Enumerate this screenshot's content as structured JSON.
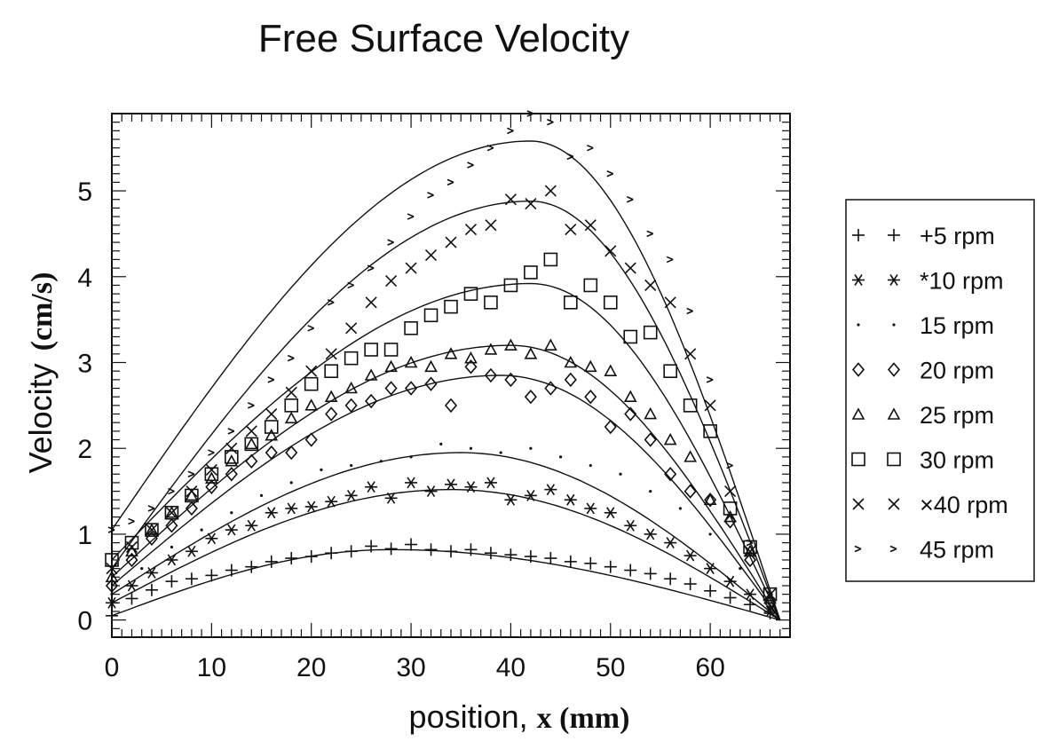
{
  "chart_data": {
    "type": "scatter",
    "title": "Free Surface Velocity",
    "xlabel_main": "position,",
    "xlabel_var": "x (mm)",
    "ylabel_main": "Velocity",
    "ylabel_unit": "(cm/s)",
    "xlim": [
      0,
      68
    ],
    "ylim": [
      -0.2,
      5.9
    ],
    "x_ticks": [
      0,
      10,
      20,
      30,
      40,
      50,
      60
    ],
    "x_tick_labels": [
      "0",
      "10",
      "20",
      "30",
      "40",
      "50",
      "60"
    ],
    "y_ticks": [
      0,
      1,
      2,
      3,
      4,
      5
    ],
    "y_tick_labels": [
      "0",
      "1",
      "2",
      "3",
      "4",
      "5"
    ],
    "grid": false,
    "legend_position": "right",
    "series": [
      {
        "name": "5 rpm",
        "marker": "plus",
        "legend": "+5 rpm",
        "fit_peak": 0.82,
        "fit_peak_x": 28,
        "x": [
          0,
          2,
          4,
          6,
          8,
          10,
          12,
          14,
          16,
          18,
          20,
          22,
          24,
          26,
          28,
          30,
          32,
          34,
          36,
          38,
          40,
          42,
          44,
          46,
          48,
          50,
          52,
          54,
          56,
          58,
          60,
          62,
          64,
          66
        ],
        "y": [
          0.05,
          0.25,
          0.35,
          0.45,
          0.48,
          0.52,
          0.58,
          0.62,
          0.68,
          0.72,
          0.74,
          0.78,
          0.8,
          0.86,
          0.83,
          0.88,
          0.82,
          0.8,
          0.82,
          0.78,
          0.76,
          0.74,
          0.72,
          0.68,
          0.66,
          0.62,
          0.58,
          0.54,
          0.48,
          0.42,
          0.34,
          0.26,
          0.18,
          0.08
        ]
      },
      {
        "name": "10 rpm",
        "marker": "star",
        "legend": "*10 rpm",
        "fit_peak": 1.52,
        "fit_peak_x": 34,
        "x": [
          0,
          2,
          4,
          6,
          8,
          10,
          12,
          14,
          16,
          18,
          20,
          22,
          24,
          26,
          28,
          30,
          32,
          34,
          36,
          38,
          40,
          42,
          44,
          46,
          48,
          50,
          52,
          54,
          56,
          58,
          60,
          62,
          64,
          66
        ],
        "y": [
          0.2,
          0.4,
          0.55,
          0.7,
          0.8,
          0.95,
          1.05,
          1.1,
          1.25,
          1.3,
          1.32,
          1.38,
          1.45,
          1.55,
          1.42,
          1.6,
          1.5,
          1.58,
          1.55,
          1.6,
          1.4,
          1.45,
          1.52,
          1.4,
          1.3,
          1.25,
          1.1,
          1.0,
          0.9,
          0.75,
          0.6,
          0.45,
          0.3,
          0.1
        ]
      },
      {
        "name": "15 rpm",
        "marker": "dot",
        "legend": "15 rpm",
        "fit_peak": 1.95,
        "fit_peak_x": 35,
        "x": [
          0,
          3,
          6,
          9,
          12,
          15,
          18,
          21,
          24,
          27,
          30,
          33,
          36,
          39,
          42,
          45,
          48,
          51,
          54,
          57,
          60,
          63,
          66
        ],
        "y": [
          0.3,
          0.6,
          0.85,
          1.05,
          1.25,
          1.45,
          1.6,
          1.75,
          1.8,
          1.85,
          1.9,
          2.05,
          2.0,
          1.95,
          2.0,
          1.9,
          1.8,
          1.7,
          1.5,
          1.3,
          1.0,
          0.6,
          0.15
        ]
      },
      {
        "name": "20 rpm",
        "marker": "diamond",
        "legend": "20 rpm",
        "fit_peak": 2.85,
        "fit_peak_x": 39,
        "x": [
          0,
          2,
          4,
          6,
          8,
          10,
          12,
          14,
          16,
          18,
          20,
          22,
          24,
          26,
          28,
          30,
          32,
          34,
          36,
          38,
          40,
          42,
          44,
          46,
          48,
          50,
          52,
          54,
          56,
          58,
          60,
          62,
          64,
          66
        ],
        "y": [
          0.4,
          0.7,
          0.95,
          1.1,
          1.3,
          1.55,
          1.7,
          1.85,
          1.95,
          1.95,
          2.1,
          2.4,
          2.5,
          2.55,
          2.7,
          2.7,
          2.75,
          2.5,
          2.95,
          2.85,
          2.8,
          2.6,
          2.7,
          2.8,
          2.6,
          2.25,
          2.4,
          2.1,
          1.7,
          1.5,
          1.4,
          1.15,
          0.7,
          0.2
        ]
      },
      {
        "name": "25 rpm",
        "marker": "triangle",
        "legend": "25 rpm",
        "fit_peak": 3.2,
        "fit_peak_x": 40,
        "x": [
          0,
          2,
          4,
          6,
          8,
          10,
          12,
          14,
          16,
          18,
          20,
          22,
          24,
          26,
          28,
          30,
          32,
          34,
          36,
          38,
          40,
          42,
          44,
          46,
          48,
          50,
          52,
          54,
          56,
          58,
          60,
          62,
          64,
          66
        ],
        "y": [
          0.5,
          0.8,
          1.05,
          1.25,
          1.45,
          1.65,
          1.85,
          2.05,
          2.15,
          2.35,
          2.5,
          2.6,
          2.7,
          2.85,
          2.95,
          3.0,
          2.95,
          3.1,
          3.05,
          3.15,
          3.2,
          3.1,
          3.2,
          3.0,
          2.95,
          2.9,
          2.6,
          2.4,
          2.1,
          1.9,
          1.4,
          1.2,
          0.8,
          0.25
        ]
      },
      {
        "name": "30 rpm",
        "marker": "square",
        "legend": "30 rpm",
        "fit_peak": 3.92,
        "fit_peak_x": 42,
        "x": [
          0,
          2,
          4,
          6,
          8,
          10,
          12,
          14,
          16,
          18,
          20,
          22,
          24,
          26,
          28,
          30,
          32,
          34,
          36,
          38,
          40,
          42,
          44,
          46,
          48,
          50,
          52,
          54,
          56,
          58,
          60,
          62,
          64,
          66
        ],
        "y": [
          0.7,
          0.9,
          1.05,
          1.25,
          1.45,
          1.7,
          1.9,
          2.05,
          2.25,
          2.5,
          2.75,
          2.9,
          3.05,
          3.15,
          3.15,
          3.4,
          3.55,
          3.65,
          3.8,
          3.7,
          3.9,
          4.05,
          4.2,
          3.7,
          3.9,
          3.7,
          3.3,
          3.35,
          2.9,
          2.5,
          2.2,
          1.3,
          0.85,
          0.3
        ]
      },
      {
        "name": "40 rpm",
        "marker": "cross",
        "legend": "×40 rpm",
        "fit_peak": 4.88,
        "fit_peak_x": 42,
        "x": [
          0,
          2,
          4,
          6,
          8,
          10,
          12,
          14,
          16,
          18,
          20,
          22,
          24,
          26,
          28,
          30,
          32,
          34,
          36,
          38,
          40,
          42,
          44,
          46,
          48,
          50,
          52,
          54,
          56,
          58,
          60,
          62,
          64,
          66
        ],
        "y": [
          0.6,
          0.85,
          1.05,
          1.25,
          1.5,
          1.75,
          2.0,
          2.2,
          2.4,
          2.65,
          2.9,
          3.1,
          3.4,
          3.7,
          3.95,
          4.1,
          4.25,
          4.4,
          4.55,
          4.6,
          4.9,
          4.85,
          5.0,
          4.55,
          4.6,
          4.3,
          4.1,
          3.9,
          3.7,
          3.1,
          2.5,
          1.5,
          0.8,
          0.3
        ]
      },
      {
        "name": "45 rpm",
        "marker": "tick",
        "legend": "45 rpm",
        "fit_peak": 5.58,
        "fit_peak_x": 42,
        "x": [
          0,
          2,
          4,
          6,
          8,
          10,
          12,
          14,
          16,
          18,
          20,
          22,
          24,
          26,
          28,
          30,
          32,
          34,
          36,
          38,
          40,
          42,
          44,
          46,
          48,
          50,
          52,
          54,
          56,
          58,
          60,
          62,
          64,
          66
        ],
        "y": [
          1.05,
          1.15,
          1.3,
          1.5,
          1.7,
          1.95,
          2.2,
          2.5,
          2.8,
          3.05,
          3.4,
          3.7,
          3.9,
          4.1,
          4.4,
          4.7,
          4.95,
          5.1,
          5.3,
          5.5,
          5.7,
          5.9,
          5.8,
          5.4,
          5.5,
          5.2,
          4.9,
          4.5,
          4.2,
          3.6,
          2.8,
          1.8,
          0.9,
          0.3
        ]
      }
    ]
  }
}
